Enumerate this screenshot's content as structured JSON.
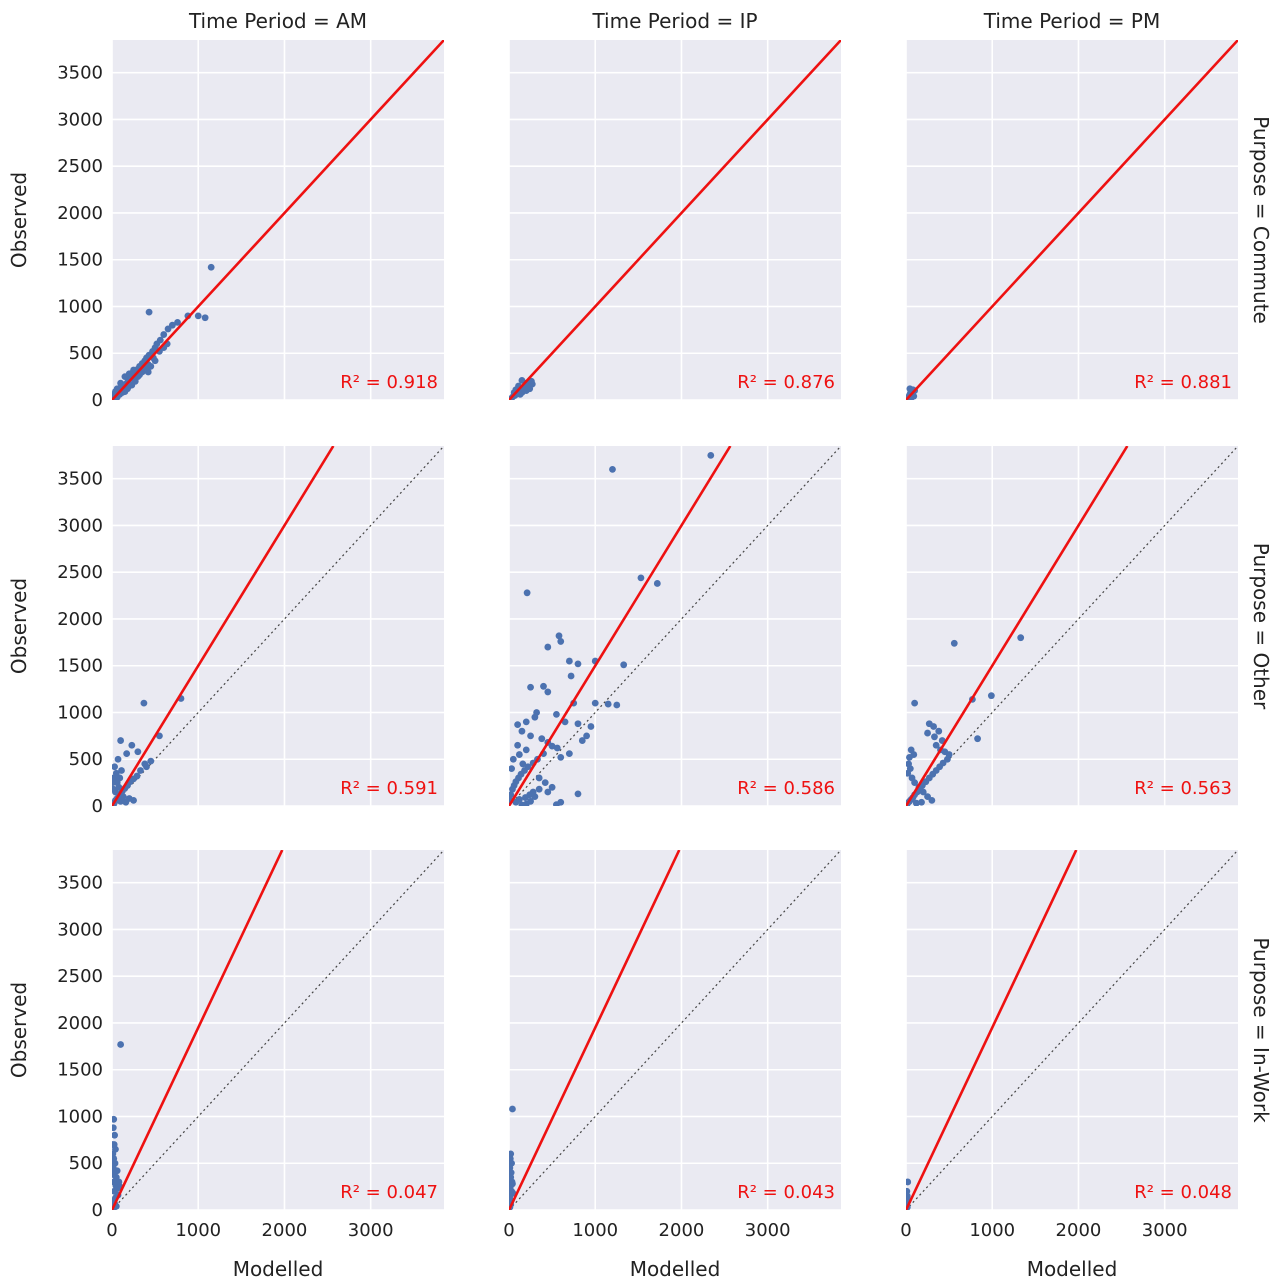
{
  "chart_data": {
    "type": "scatter",
    "layout": "facet-grid",
    "xlabel": "Modelled",
    "ylabel": "Observed",
    "xlim": [
      0,
      3850
    ],
    "ylim": [
      0,
      3850
    ],
    "xticks": [
      0,
      1000,
      2000,
      3000
    ],
    "yticks": [
      0,
      500,
      1000,
      1500,
      2000,
      2500,
      3000,
      3500
    ],
    "grid": true,
    "identity_line": "dotted",
    "colors": {
      "points": "#4c72b0",
      "fit": "#ee1111",
      "background": "#eaeaf2",
      "identity": "#444444"
    },
    "columns": [
      "Time Period = AM",
      "Time Period = IP",
      "Time Period = PM"
    ],
    "rows": [
      "Purpose = Commute",
      "Purpose = Other",
      "Purpose = In-Work"
    ],
    "panels": [
      {
        "row": 0,
        "col": 0,
        "r2_label": "R² = 0.918",
        "fit_slope": 1.0,
        "points": [
          [
            1150,
            1420
          ],
          [
            430,
            940
          ],
          [
            1000,
            900
          ],
          [
            1080,
            880
          ],
          [
            880,
            900
          ],
          [
            760,
            830
          ],
          [
            700,
            800
          ],
          [
            650,
            760
          ],
          [
            600,
            700
          ],
          [
            560,
            640
          ],
          [
            520,
            600
          ],
          [
            500,
            560
          ],
          [
            470,
            520
          ],
          [
            430,
            480
          ],
          [
            400,
            450
          ],
          [
            380,
            420
          ],
          [
            350,
            390
          ],
          [
            320,
            360
          ],
          [
            300,
            330
          ],
          [
            280,
            300
          ],
          [
            250,
            270
          ],
          [
            220,
            240
          ],
          [
            200,
            220
          ],
          [
            180,
            190
          ],
          [
            160,
            170
          ],
          [
            140,
            150
          ],
          [
            120,
            130
          ],
          [
            100,
            110
          ],
          [
            80,
            90
          ],
          [
            60,
            70
          ],
          [
            40,
            50
          ],
          [
            20,
            25
          ],
          [
            300,
            250
          ],
          [
            350,
            300
          ],
          [
            250,
            320
          ],
          [
            200,
            280
          ],
          [
            150,
            250
          ],
          [
            420,
            380
          ],
          [
            480,
            450
          ],
          [
            550,
            520
          ],
          [
            600,
            560
          ],
          [
            640,
            600
          ],
          [
            500,
            420
          ],
          [
            450,
            360
          ],
          [
            320,
            270
          ],
          [
            270,
            200
          ],
          [
            230,
            160
          ],
          [
            180,
            120
          ],
          [
            120,
            80
          ],
          [
            90,
            60
          ],
          [
            60,
            30
          ],
          [
            100,
            180
          ],
          [
            60,
            120
          ],
          [
            40,
            90
          ],
          [
            30,
            60
          ],
          [
            150,
            90
          ],
          [
            200,
            150
          ],
          [
            260,
            230
          ],
          [
            340,
            330
          ],
          [
            390,
            350
          ],
          [
            420,
            300
          ]
        ]
      },
      {
        "row": 0,
        "col": 1,
        "r2_label": "R² = 0.876",
        "fit_slope": 1.0,
        "points": [
          [
            150,
            210
          ],
          [
            200,
            180
          ],
          [
            230,
            160
          ],
          [
            260,
            200
          ],
          [
            270,
            170
          ],
          [
            180,
            140
          ],
          [
            120,
            120
          ],
          [
            100,
            90
          ],
          [
            90,
            70
          ],
          [
            70,
            50
          ],
          [
            50,
            40
          ],
          [
            30,
            20
          ],
          [
            20,
            10
          ],
          [
            150,
            80
          ],
          [
            200,
            100
          ],
          [
            240,
            120
          ],
          [
            130,
            60
          ],
          [
            110,
            150
          ],
          [
            80,
            110
          ],
          [
            60,
            80
          ],
          [
            160,
            100
          ],
          [
            210,
            140
          ]
        ]
      },
      {
        "row": 0,
        "col": 2,
        "r2_label": "R² = 0.881",
        "fit_slope": 1.0,
        "points": [
          [
            80,
            110
          ],
          [
            60,
            90
          ],
          [
            50,
            70
          ],
          [
            40,
            50
          ],
          [
            30,
            30
          ],
          [
            20,
            20
          ],
          [
            10,
            10
          ],
          [
            70,
            60
          ],
          [
            90,
            40
          ],
          [
            100,
            100
          ],
          [
            45,
            120
          ],
          [
            55,
            15
          ]
        ]
      },
      {
        "row": 1,
        "col": 0,
        "r2_label": "R² = 0.591",
        "fit_slope": 1.5,
        "points": [
          [
            800,
            1150
          ],
          [
            370,
            1100
          ],
          [
            100,
            700
          ],
          [
            230,
            650
          ],
          [
            300,
            580
          ],
          [
            170,
            560
          ],
          [
            550,
            750
          ],
          [
            450,
            480
          ],
          [
            380,
            450
          ],
          [
            400,
            420
          ],
          [
            330,
            380
          ],
          [
            290,
            320
          ],
          [
            250,
            290
          ],
          [
            210,
            260
          ],
          [
            180,
            220
          ],
          [
            150,
            190
          ],
          [
            120,
            160
          ],
          [
            100,
            130
          ],
          [
            80,
            100
          ],
          [
            60,
            80
          ],
          [
            40,
            60
          ],
          [
            30,
            40
          ],
          [
            20,
            20
          ],
          [
            50,
            350
          ],
          [
            30,
            420
          ],
          [
            20,
            300
          ],
          [
            60,
            250
          ],
          [
            80,
            200
          ],
          [
            40,
            150
          ],
          [
            130,
            100
          ],
          [
            200,
            80
          ],
          [
            250,
            60
          ],
          [
            160,
            40
          ],
          [
            100,
            50
          ],
          [
            90,
            300
          ],
          [
            110,
            380
          ],
          [
            70,
            500
          ],
          [
            10,
            250
          ],
          [
            15,
            180
          ]
        ]
      },
      {
        "row": 1,
        "col": 1,
        "r2_label": "R² = 0.586",
        "fit_slope": 1.5,
        "points": [
          [
            1200,
            3600
          ],
          [
            2340,
            3750
          ],
          [
            210,
            2280
          ],
          [
            1530,
            2440
          ],
          [
            1720,
            2380
          ],
          [
            580,
            1820
          ],
          [
            600,
            1760
          ],
          [
            450,
            1700
          ],
          [
            700,
            1550
          ],
          [
            1000,
            1550
          ],
          [
            800,
            1520
          ],
          [
            1330,
            1510
          ],
          [
            720,
            1390
          ],
          [
            400,
            1280
          ],
          [
            250,
            1270
          ],
          [
            1000,
            1100
          ],
          [
            1150,
            1090
          ],
          [
            1250,
            1080
          ],
          [
            450,
            1220
          ],
          [
            320,
            1000
          ],
          [
            550,
            980
          ],
          [
            650,
            900
          ],
          [
            800,
            880
          ],
          [
            950,
            850
          ],
          [
            750,
            1100
          ],
          [
            300,
            950
          ],
          [
            200,
            900
          ],
          [
            100,
            870
          ],
          [
            150,
            800
          ],
          [
            250,
            750
          ],
          [
            380,
            720
          ],
          [
            450,
            680
          ],
          [
            500,
            640
          ],
          [
            560,
            620
          ],
          [
            400,
            560
          ],
          [
            330,
            500
          ],
          [
            280,
            460
          ],
          [
            220,
            420
          ],
          [
            180,
            380
          ],
          [
            140,
            340
          ],
          [
            110,
            300
          ],
          [
            80,
            260
          ],
          [
            60,
            220
          ],
          [
            40,
            180
          ],
          [
            20,
            120
          ],
          [
            10,
            60
          ],
          [
            600,
            520
          ],
          [
            700,
            560
          ],
          [
            850,
            700
          ],
          [
            900,
            750
          ],
          [
            200,
            600
          ],
          [
            100,
            650
          ],
          [
            50,
            500
          ],
          [
            30,
            400
          ],
          [
            120,
            550
          ],
          [
            160,
            450
          ],
          [
            350,
            300
          ],
          [
            420,
            250
          ],
          [
            500,
            200
          ],
          [
            450,
            150
          ],
          [
            800,
            130
          ],
          [
            300,
            100
          ],
          [
            250,
            50
          ],
          [
            200,
            20
          ],
          [
            150,
            10
          ],
          [
            550,
            15
          ],
          [
            600,
            40
          ],
          [
            350,
            180
          ],
          [
            280,
            150
          ],
          [
            240,
            120
          ],
          [
            190,
            90
          ],
          [
            120,
            70
          ],
          [
            80,
            40
          ]
        ]
      },
      {
        "row": 1,
        "col": 2,
        "r2_label": "R² = 0.563",
        "fit_slope": 1.5,
        "points": [
          [
            1330,
            1800
          ],
          [
            560,
            1740
          ],
          [
            770,
            1140
          ],
          [
            990,
            1180
          ],
          [
            100,
            1100
          ],
          [
            830,
            720
          ],
          [
            270,
            880
          ],
          [
            320,
            850
          ],
          [
            380,
            800
          ],
          [
            250,
            780
          ],
          [
            330,
            740
          ],
          [
            420,
            700
          ],
          [
            350,
            650
          ],
          [
            400,
            600
          ],
          [
            450,
            580
          ],
          [
            500,
            550
          ],
          [
            480,
            500
          ],
          [
            430,
            460
          ],
          [
            390,
            420
          ],
          [
            350,
            380
          ],
          [
            310,
            340
          ],
          [
            270,
            300
          ],
          [
            230,
            260
          ],
          [
            190,
            220
          ],
          [
            160,
            180
          ],
          [
            130,
            150
          ],
          [
            100,
            120
          ],
          [
            80,
            90
          ],
          [
            60,
            70
          ],
          [
            40,
            50
          ],
          [
            20,
            30
          ],
          [
            50,
            400
          ],
          [
            30,
            450
          ],
          [
            20,
            350
          ],
          [
            70,
            300
          ],
          [
            100,
            250
          ],
          [
            150,
            200
          ],
          [
            200,
            150
          ],
          [
            250,
            100
          ],
          [
            300,
            60
          ],
          [
            180,
            40
          ],
          [
            120,
            30
          ],
          [
            60,
            600
          ],
          [
            90,
            550
          ],
          [
            40,
            520
          ]
        ]
      },
      {
        "row": 2,
        "col": 0,
        "r2_label": "R² = 0.047",
        "fit_slope": 1.95,
        "points": [
          [
            100,
            1770
          ],
          [
            20,
            970
          ],
          [
            15,
            880
          ],
          [
            30,
            800
          ],
          [
            25,
            700
          ],
          [
            40,
            650
          ],
          [
            10,
            600
          ],
          [
            20,
            550
          ],
          [
            35,
            500
          ],
          [
            15,
            450
          ],
          [
            30,
            400
          ],
          [
            50,
            350
          ],
          [
            20,
            300
          ],
          [
            45,
            260
          ],
          [
            60,
            230
          ],
          [
            25,
            200
          ],
          [
            70,
            160
          ],
          [
            40,
            130
          ],
          [
            15,
            100
          ],
          [
            30,
            70
          ],
          [
            50,
            40
          ],
          [
            20,
            20
          ],
          [
            80,
            300
          ],
          [
            90,
            250
          ],
          [
            60,
            420
          ],
          [
            10,
            380
          ],
          [
            5,
            700
          ]
        ]
      },
      {
        "row": 2,
        "col": 1,
        "r2_label": "R² = 0.043",
        "fit_slope": 1.95,
        "points": [
          [
            40,
            1080
          ],
          [
            20,
            600
          ],
          [
            15,
            550
          ],
          [
            30,
            500
          ],
          [
            10,
            450
          ],
          [
            25,
            400
          ],
          [
            20,
            350
          ],
          [
            35,
            300
          ],
          [
            15,
            250
          ],
          [
            30,
            200
          ],
          [
            10,
            150
          ],
          [
            25,
            100
          ],
          [
            20,
            60
          ],
          [
            10,
            30
          ],
          [
            5,
            500
          ],
          [
            40,
            280
          ],
          [
            45,
            180
          ]
        ]
      },
      {
        "row": 2,
        "col": 2,
        "r2_label": "R² = 0.048",
        "fit_slope": 1.95,
        "points": [
          [
            20,
            300
          ],
          [
            10,
            200
          ],
          [
            15,
            150
          ],
          [
            25,
            100
          ],
          [
            5,
            60
          ],
          [
            15,
            30
          ]
        ]
      }
    ]
  }
}
